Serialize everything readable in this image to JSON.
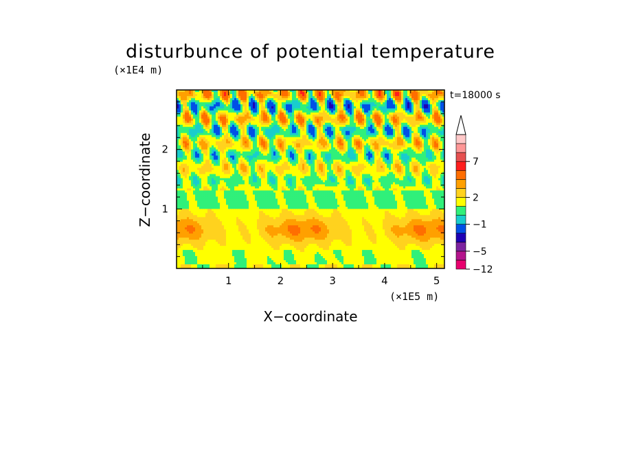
{
  "chart_data": {
    "type": "heatmap",
    "title": "disturbunce of potential temperature",
    "time_label": "t=18000 s",
    "xlabel": "X−coordinate",
    "ylabel": "Z−coordinate",
    "x_unit": "(×1E5 m)",
    "y_unit": "(×1E4 m)",
    "xlim": [
      0,
      5.15
    ],
    "ylim": [
      0,
      3.0
    ],
    "x_ticks": [
      {
        "value": 1,
        "label": "1"
      },
      {
        "value": 2,
        "label": "2"
      },
      {
        "value": 3,
        "label": "3"
      },
      {
        "value": 4,
        "label": "4"
      },
      {
        "value": 5,
        "label": "5"
      }
    ],
    "y_ticks": [
      {
        "value": 1,
        "label": "1"
      },
      {
        "value": 2,
        "label": "2"
      }
    ],
    "colorbar": {
      "labels": [
        {
          "value": 7,
          "label": "7"
        },
        {
          "value": 2,
          "label": "2"
        },
        {
          "value": -1,
          "label": "−1"
        },
        {
          "value": -5,
          "label": "−5"
        },
        {
          "value": -12,
          "label": "−12"
        }
      ],
      "colors": [
        "#e8006e",
        "#b4148c",
        "#7d23a0",
        "#1e00b4",
        "#0050e6",
        "#19cdcd",
        "#30f07a",
        "#ffff00",
        "#ffd21e",
        "#ffa000",
        "#ff6e00",
        "#ff1e1e",
        "#e65050",
        "#ff9696",
        "#ffc8c8"
      ]
    },
    "regions": [
      {
        "name": "upper layer",
        "z_range": [
          1.2,
          3.0
        ],
        "dominant": "alternating crossing wave bands of warm (orange–red) and cold (blue) anomalies over yellow-green background"
      },
      {
        "name": "middle layer",
        "z_range": [
          1.0,
          1.3
        ],
        "dominant": "green, near 0"
      },
      {
        "name": "lower layer",
        "z_range": [
          0.0,
          1.0
        ],
        "dominant": "yellow to orange warm band centered near z=0.65"
      }
    ]
  }
}
